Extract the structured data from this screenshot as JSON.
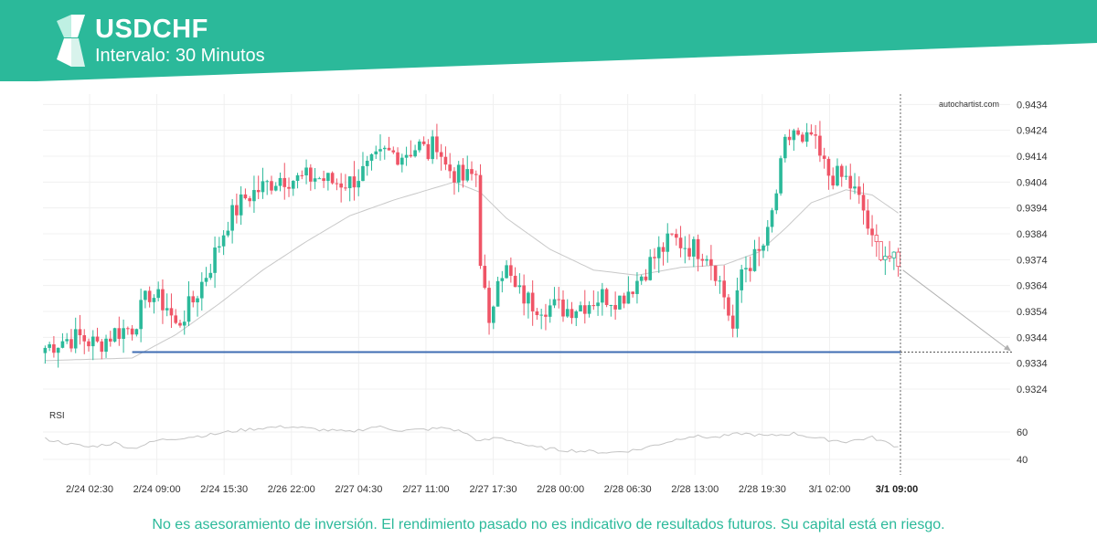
{
  "header": {
    "symbol": "USDCHF",
    "interval": "Intervalo: 30 Minutos",
    "brand_color": "#2bb99a",
    "logo_icon": "autochartist-chevron-logo"
  },
  "watermark": "autochartist.com",
  "disclaimer": "No es asesoramiento de inversión. El rendimiento pasado no es indicativo de resultados futuros. Su capital está en riesgo.",
  "chart_data": {
    "type": "candlestick",
    "title": "USDCHF",
    "interval": "30 Minutos",
    "y_range": [
      0.9318,
      0.9438
    ],
    "y_ticks": [
      "0.9434",
      "0.9424",
      "0.9414",
      "0.9404",
      "0.9394",
      "0.9384",
      "0.9374",
      "0.9364",
      "0.9354",
      "0.9344",
      "0.9334",
      "0.9324"
    ],
    "x_ticks": [
      "2/24 02:30",
      "2/24 09:00",
      "2/24 15:30",
      "2/26 22:00",
      "2/27 04:30",
      "2/27 11:00",
      "2/27 17:30",
      "2/28 00:00",
      "2/28 06:30",
      "2/28 13:00",
      "2/28 19:30",
      "3/1 02:00",
      "3/1 09:00"
    ],
    "current_time_label": "3/1 09:00",
    "up_color": "#2bb99a",
    "down_color": "#ef5466",
    "support_level": 0.93383,
    "support_color": "#3f6db3",
    "projection": {
      "from": 0.937,
      "to": 0.93383
    },
    "close_anchors": [
      [
        0,
        0.934
      ],
      [
        4,
        0.9343
      ],
      [
        8,
        0.9344
      ],
      [
        12,
        0.9341
      ],
      [
        16,
        0.9346
      ],
      [
        20,
        0.9348
      ],
      [
        24,
        0.9361
      ],
      [
        28,
        0.9356
      ],
      [
        30,
        0.9348
      ],
      [
        34,
        0.9358
      ],
      [
        38,
        0.9372
      ],
      [
        42,
        0.9389
      ],
      [
        46,
        0.9398
      ],
      [
        50,
        0.9402
      ],
      [
        54,
        0.9406
      ],
      [
        58,
        0.9405
      ],
      [
        62,
        0.9406
      ],
      [
        66,
        0.9404
      ],
      [
        70,
        0.9404
      ],
      [
        74,
        0.9409
      ],
      [
        78,
        0.9415
      ],
      [
        82,
        0.9415
      ],
      [
        86,
        0.9418
      ],
      [
        88,
        0.9415
      ],
      [
        90,
        0.942
      ],
      [
        92,
        0.941
      ],
      [
        96,
        0.9405
      ],
      [
        99,
        0.9407
      ],
      [
        100,
        0.9375
      ],
      [
        102,
        0.9346
      ],
      [
        104,
        0.937
      ],
      [
        106,
        0.937
      ],
      [
        108,
        0.9362
      ],
      [
        112,
        0.9357
      ],
      [
        116,
        0.9356
      ],
      [
        120,
        0.9355
      ],
      [
        124,
        0.9357
      ],
      [
        128,
        0.936
      ],
      [
        132,
        0.9359
      ],
      [
        136,
        0.9366
      ],
      [
        140,
        0.9375
      ],
      [
        144,
        0.9382
      ],
      [
        148,
        0.9379
      ],
      [
        152,
        0.9377
      ],
      [
        154,
        0.937
      ],
      [
        156,
        0.936
      ],
      [
        158,
        0.9347
      ],
      [
        160,
        0.937
      ],
      [
        164,
        0.9376
      ],
      [
        166,
        0.9383
      ],
      [
        168,
        0.94
      ],
      [
        170,
        0.9418
      ],
      [
        172,
        0.9424
      ],
      [
        174,
        0.9417
      ],
      [
        176,
        0.9422
      ],
      [
        178,
        0.9413
      ],
      [
        180,
        0.9407
      ],
      [
        182,
        0.9406
      ],
      [
        184,
        0.9405
      ],
      [
        186,
        0.94
      ],
      [
        188,
        0.9393
      ],
      [
        190,
        0.938
      ],
      [
        192,
        0.9378
      ],
      [
        194,
        0.9375
      ],
      [
        196,
        0.937
      ]
    ],
    "ma_anchors": [
      [
        0,
        0.9335
      ],
      [
        20,
        0.9336
      ],
      [
        30,
        0.9345
      ],
      [
        40,
        0.9357
      ],
      [
        50,
        0.937
      ],
      [
        60,
        0.9381
      ],
      [
        70,
        0.9391
      ],
      [
        80,
        0.9397
      ],
      [
        88,
        0.9401
      ],
      [
        94,
        0.9404
      ],
      [
        100,
        0.94
      ],
      [
        106,
        0.939
      ],
      [
        116,
        0.9378
      ],
      [
        126,
        0.937
      ],
      [
        136,
        0.9368
      ],
      [
        146,
        0.9371
      ],
      [
        156,
        0.9372
      ],
      [
        164,
        0.9377
      ],
      [
        170,
        0.9386
      ],
      [
        176,
        0.9396
      ],
      [
        184,
        0.9401
      ],
      [
        190,
        0.9399
      ],
      [
        196,
        0.9392
      ]
    ],
    "rsi": {
      "label": "RSI",
      "y_ticks": [
        "60",
        "40"
      ],
      "anchors": [
        [
          0,
          55
        ],
        [
          6,
          51
        ],
        [
          10,
          49
        ],
        [
          16,
          52
        ],
        [
          20,
          48
        ],
        [
          26,
          54
        ],
        [
          32,
          56
        ],
        [
          38,
          58
        ],
        [
          44,
          61
        ],
        [
          50,
          63
        ],
        [
          56,
          64
        ],
        [
          62,
          62
        ],
        [
          70,
          60
        ],
        [
          76,
          64
        ],
        [
          82,
          61
        ],
        [
          88,
          62
        ],
        [
          92,
          63
        ],
        [
          96,
          60
        ],
        [
          100,
          53
        ],
        [
          104,
          56
        ],
        [
          108,
          53
        ],
        [
          112,
          49
        ],
        [
          118,
          47
        ],
        [
          124,
          46
        ],
        [
          130,
          45
        ],
        [
          136,
          47
        ],
        [
          142,
          52
        ],
        [
          148,
          57
        ],
        [
          154,
          56
        ],
        [
          160,
          59
        ],
        [
          166,
          57
        ],
        [
          172,
          59
        ],
        [
          178,
          55
        ],
        [
          184,
          53
        ],
        [
          190,
          56
        ],
        [
          196,
          49
        ]
      ]
    }
  }
}
